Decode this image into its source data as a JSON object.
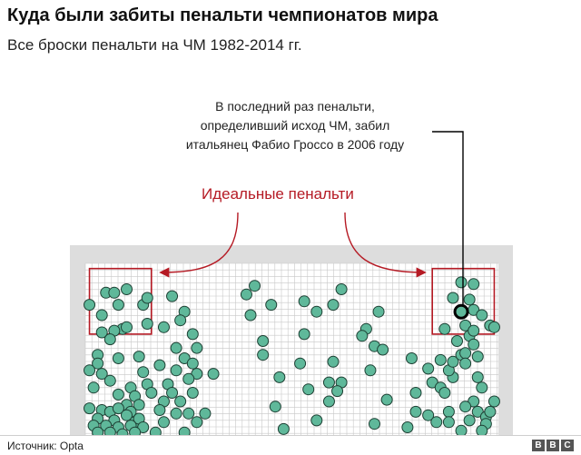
{
  "title": "Куда были забиты пенальти чемпионатов мира",
  "subtitle": "Все броски пенальти на ЧМ 1982-2014 гг.",
  "annotation": {
    "lines": [
      "В последний раз пенальти,",
      "определивший исход ЧМ, забил",
      "итальянец Фабио Гроссо в 2006 году"
    ]
  },
  "ideal_label": "Идеальные пенальти",
  "source": "Источник: Opta",
  "logo": [
    "B",
    "B",
    "C"
  ],
  "colors": {
    "dot_fill": "#5fb89a",
    "dot_stroke": "#1d3f33",
    "highlight_stroke": "#000000",
    "ideal_red": "#b51a24",
    "goal_frame": "#dddddd",
    "net_grid": "#c8c8c8"
  },
  "chart_data": {
    "type": "scatter",
    "title": "Куда были забиты пенальти чемпионатов мира",
    "subtitle": "Все броски пенальти на ЧМ 1982-2014 гг.",
    "xlim": [
      0,
      100
    ],
    "ylim": [
      0,
      100
    ],
    "y_direction": "top-to-bottom",
    "grid": true,
    "ideal_zones": [
      {
        "x0": 1,
        "y0": 3,
        "x1": 16,
        "y1": 41
      },
      {
        "x0": 84,
        "y0": 3,
        "x1": 99,
        "y1": 41
      }
    ],
    "highlight": {
      "x": 91,
      "y": 28
    },
    "points": [
      [
        1,
        24
      ],
      [
        5,
        17
      ],
      [
        7,
        17
      ],
      [
        10,
        15
      ],
      [
        8,
        24
      ],
      [
        4,
        30
      ],
      [
        14,
        24
      ],
      [
        15,
        20
      ],
      [
        9,
        38
      ],
      [
        4,
        40
      ],
      [
        7,
        39
      ],
      [
        10,
        37
      ],
      [
        15,
        35
      ],
      [
        6,
        44
      ],
      [
        3,
        53
      ],
      [
        3,
        58
      ],
      [
        8,
        55
      ],
      [
        13,
        54
      ],
      [
        1,
        62
      ],
      [
        4,
        64
      ],
      [
        14,
        63
      ],
      [
        2,
        72
      ],
      [
        6,
        68
      ],
      [
        11,
        72
      ],
      [
        15,
        70
      ],
      [
        8,
        76
      ],
      [
        12,
        77
      ],
      [
        10,
        82
      ],
      [
        13,
        82
      ],
      [
        1,
        84
      ],
      [
        4,
        85
      ],
      [
        6,
        86
      ],
      [
        8,
        84
      ],
      [
        11,
        86
      ],
      [
        3,
        90
      ],
      [
        7,
        91
      ],
      [
        10,
        88
      ],
      [
        12,
        92
      ],
      [
        13,
        90
      ],
      [
        2,
        94
      ],
      [
        5,
        94
      ],
      [
        8,
        95
      ],
      [
        11,
        94
      ],
      [
        14,
        95
      ],
      [
        6,
        98
      ],
      [
        9,
        99
      ],
      [
        12,
        98
      ],
      [
        3,
        98
      ],
      [
        21,
        19
      ],
      [
        24,
        28
      ],
      [
        23,
        33
      ],
      [
        19,
        37
      ],
      [
        26,
        41
      ],
      [
        22,
        49
      ],
      [
        27,
        49
      ],
      [
        24,
        55
      ],
      [
        18,
        59
      ],
      [
        22,
        62
      ],
      [
        27,
        64
      ],
      [
        25,
        67
      ],
      [
        20,
        70
      ],
      [
        16,
        75
      ],
      [
        21,
        75
      ],
      [
        26,
        75
      ],
      [
        19,
        80
      ],
      [
        23,
        80
      ],
      [
        18,
        85
      ],
      [
        22,
        87
      ],
      [
        25,
        87
      ],
      [
        19,
        92
      ],
      [
        27,
        92
      ],
      [
        17,
        98
      ],
      [
        24,
        98
      ],
      [
        31,
        64
      ],
      [
        26,
        58
      ],
      [
        29,
        87
      ],
      [
        39,
        18
      ],
      [
        41,
        13
      ],
      [
        40,
        30
      ],
      [
        45,
        24
      ],
      [
        43,
        45
      ],
      [
        43,
        53
      ],
      [
        47,
        66
      ],
      [
        53,
        41
      ],
      [
        52,
        58
      ],
      [
        53,
        22
      ],
      [
        56,
        28
      ],
      [
        54,
        73
      ],
      [
        46,
        83
      ],
      [
        48,
        96
      ],
      [
        60,
        57
      ],
      [
        59,
        69
      ],
      [
        62,
        69
      ],
      [
        60,
        24
      ],
      [
        59,
        80
      ],
      [
        62,
        15
      ],
      [
        61,
        74
      ],
      [
        56,
        91
      ],
      [
        68,
        38
      ],
      [
        71,
        28
      ],
      [
        67,
        42
      ],
      [
        70,
        48
      ],
      [
        72,
        50
      ],
      [
        69,
        62
      ],
      [
        73,
        79
      ],
      [
        70,
        93
      ],
      [
        79,
        55
      ],
      [
        80,
        75
      ],
      [
        86,
        56
      ],
      [
        83,
        61
      ],
      [
        84,
        69
      ],
      [
        80,
        86
      ],
      [
        83,
        88
      ],
      [
        78,
        95
      ],
      [
        85,
        92
      ],
      [
        88,
        86
      ],
      [
        88,
        92
      ],
      [
        89,
        66
      ],
      [
        86,
        72
      ],
      [
        87,
        75
      ],
      [
        88,
        62
      ],
      [
        89,
        57
      ],
      [
        89,
        20
      ],
      [
        91,
        11
      ],
      [
        93,
        21
      ],
      [
        92,
        36
      ],
      [
        87,
        38
      ],
      [
        90,
        45
      ],
      [
        91,
        53
      ],
      [
        92,
        52
      ],
      [
        92,
        58
      ],
      [
        93,
        42
      ],
      [
        94,
        47
      ],
      [
        94,
        12
      ],
      [
        94,
        27
      ],
      [
        94,
        39
      ],
      [
        96,
        30
      ],
      [
        95,
        66
      ],
      [
        96,
        72
      ],
      [
        94,
        80
      ],
      [
        92,
        83
      ],
      [
        95,
        86
      ],
      [
        93,
        91
      ],
      [
        97,
        89
      ],
      [
        97,
        93
      ],
      [
        98,
        86
      ],
      [
        96,
        97
      ],
      [
        95,
        54
      ],
      [
        99,
        80
      ],
      [
        98,
        36
      ],
      [
        99,
        37
      ],
      [
        91,
        97
      ]
    ]
  }
}
